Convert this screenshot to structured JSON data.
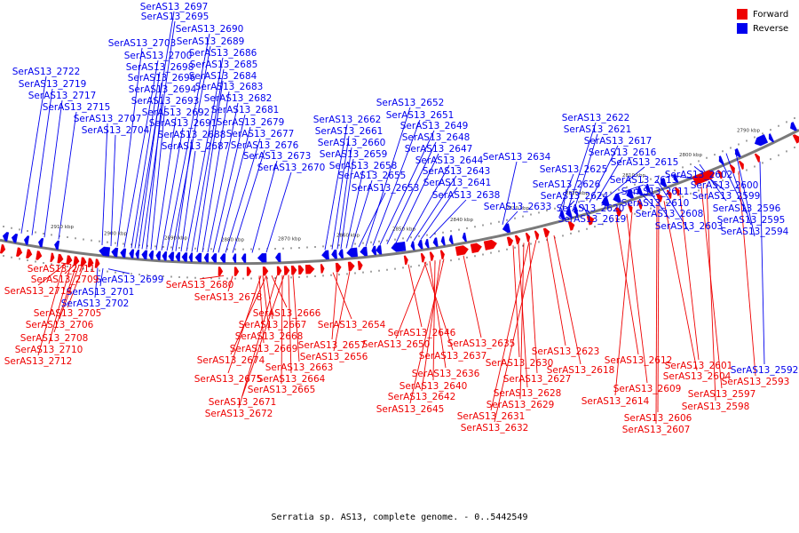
{
  "caption": "Serratia sp. AS13, complete genome. - 0..5442549",
  "legend": [
    {
      "label": "Forward",
      "color": "#ee0000"
    },
    {
      "label": "Reverse",
      "color": "#0000ee"
    }
  ],
  "colors": {
    "forward": "#ee0000",
    "reverse": "#0000ee",
    "backbone": "#7a7a7a"
  },
  "ruler_labels": [
    "2910 kbp",
    "2900 kbp",
    "2890 kbp",
    "2880 kbp",
    "2870 kbp",
    "2860 kbp",
    "2850 kbp",
    "2840 kbp",
    "2830 kbp",
    "2820 kbp",
    "2810 kbp",
    "2800 kbp",
    "2790 kbp"
  ],
  "reverse_genes": [
    "SerAS13_2722",
    "SerAS13_2719",
    "SerAS13_2717",
    "SerAS13_2715",
    "SerAS13_2707",
    "SerAS13_2704",
    "SerAS13_2703",
    "SerAS13_2700",
    "SerAS13_2698",
    "SerAS13_2697",
    "SerAS13_2696",
    "SerAS13_2695",
    "SerAS13_2694",
    "SerAS13_2693",
    "SerAS13_2692",
    "SerAS13_2691",
    "SerAS13_2690",
    "SerAS13_2689",
    "SerAS13_2688",
    "SerAS13_2687",
    "SerAS13_2686",
    "SerAS13_2685",
    "SerAS13_2684",
    "SerAS13_2683",
    "SerAS13_2682",
    "SerAS13_2681",
    "SerAS13_2679",
    "SerAS13_2677",
    "SerAS13_2676",
    "SerAS13_2673",
    "SerAS13_2670",
    "SerAS13_2662",
    "SerAS13_2661",
    "SerAS13_2660",
    "SerAS13_2659",
    "SerAS13_2658",
    "SerAS13_2655",
    "SerAS13_2653",
    "SerAS13_2652",
    "SerAS13_2651",
    "SerAS13_2649",
    "SerAS13_2648",
    "SerAS13_2647",
    "SerAS13_2644",
    "SerAS13_2643",
    "SerAS13_2641",
    "SerAS13_2638",
    "SerAS13_2634",
    "SerAS13_2633",
    "SerAS13_2625",
    "SerAS13_2626",
    "SerAS13_2624",
    "SerAS13_2622",
    "SerAS13_2621",
    "SerAS13_2620",
    "SerAS13_2619",
    "SerAS13_2617",
    "SerAS13_2616",
    "SerAS13_2615",
    "SerAS13_2613",
    "SerAS13_2611",
    "SerAS13_2610",
    "SerAS13_2608",
    "SerAS13_2603",
    "SerAS13_2602",
    "SerAS13_2600",
    "SerAS13_2599",
    "SerAS13_2596",
    "SerAS13_2595",
    "SerAS13_2594",
    "SerAS13_2592",
    "SerAS13_2699",
    "SerAS13_2701",
    "SerAS13_2702"
  ],
  "forward_genes": [
    "SerAS13_2711",
    "SerAS13_2709",
    "SerAS13_2714",
    "SerAS13_2705",
    "SerAS13_2706",
    "SerAS13_2708",
    "SerAS13_2710",
    "SerAS13_2712",
    "SerAS13_2680",
    "SerAS13_2678",
    "SerAS13_2666",
    "SerAS13_2667",
    "SerAS13_2668",
    "SerAS13_2669",
    "SerAS13_2674",
    "SerAS13_2663",
    "SerAS13_2664",
    "SerAS13_2675",
    "SerAS13_2665",
    "SerAS13_2671",
    "SerAS13_2672",
    "SerAS13_2654",
    "SerAS13_2657",
    "SerAS13_2656",
    "SerAS13_2646",
    "SerAS13_2650",
    "SerAS13_2637",
    "SerAS13_2636",
    "SerAS13_2640",
    "SerAS13_2642",
    "SerAS13_2645",
    "SerAS13_2635",
    "SerAS13_2630",
    "SerAS13_2628",
    "SerAS13_2629",
    "SerAS13_2627",
    "SerAS13_2631",
    "SerAS13_2632",
    "SerAS13_2623",
    "SerAS13_2618",
    "SerAS13_2612",
    "SerAS13_2609",
    "SerAS13_2614",
    "SerAS13_2604",
    "SerAS13_2606",
    "SerAS13_2607",
    "SerAS13_2601",
    "SerAS13_2597",
    "SerAS13_2598",
    "SerAS13_2593"
  ]
}
